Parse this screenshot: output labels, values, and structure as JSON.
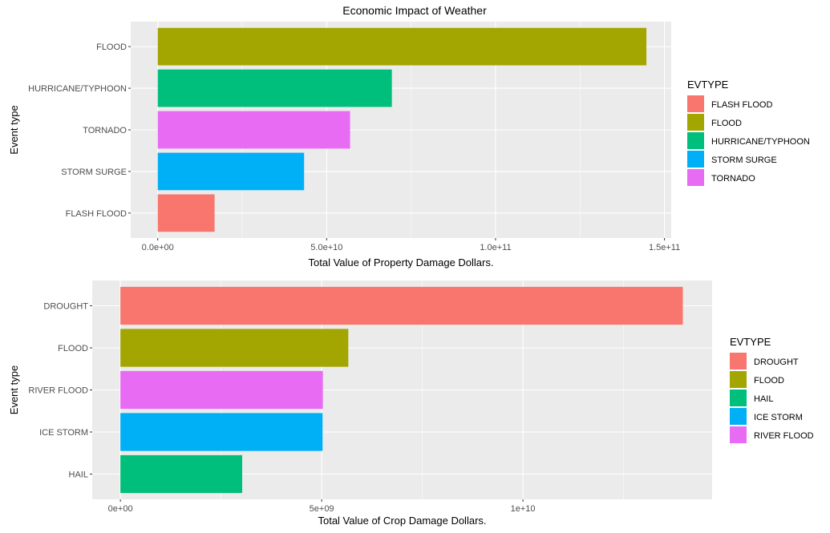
{
  "title": "Economic Impact of Weather",
  "chart_data": [
    {
      "type": "bar",
      "orientation": "horizontal",
      "categories": [
        "FLOOD",
        "HURRICANE/TYPHOON",
        "TORNADO",
        "STORM SURGE",
        "FLASH FLOOD"
      ],
      "values": [
        144657709807,
        69305840000,
        56937160779,
        43323536000,
        16822673978
      ],
      "colors": [
        "#A3A500",
        "#00BF7D",
        "#E76BF3",
        "#00B0F6",
        "#F8766D"
      ],
      "xlabel": "Total Value of Property Damage Dollars.",
      "ylabel": "Event type",
      "xlim": [
        -8000000000,
        152000000000
      ],
      "ticks": [
        0,
        50000000000,
        100000000000,
        150000000000
      ],
      "tick_labels": [
        "0.0e+00",
        "5.0e+10",
        "1.0e+11",
        "1.5e+11"
      ],
      "grid": true,
      "legend": {
        "title": "EVTYPE",
        "position": "right",
        "entries": [
          "FLASH FLOOD",
          "FLOOD",
          "HURRICANE/TYPHOON",
          "STORM SURGE",
          "TORNADO"
        ],
        "colors": [
          "#F8766D",
          "#A3A500",
          "#00BF7D",
          "#00B0F6",
          "#E76BF3"
        ]
      }
    },
    {
      "type": "bar",
      "orientation": "horizontal",
      "categories": [
        "DROUGHT",
        "FLOOD",
        "RIVER FLOOD",
        "ICE STORM",
        "HAIL"
      ],
      "values": [
        13972566000,
        5661968450,
        5029459000,
        5022113500,
        3025954473
      ],
      "colors": [
        "#F8766D",
        "#A3A500",
        "#E76BF3",
        "#00B0F6",
        "#00BF7D"
      ],
      "xlabel": "Total Value of Crop Damage Dollars.",
      "ylabel": "Event type",
      "xlim": [
        -700000000,
        14700000000
      ],
      "ticks": [
        0,
        5000000000,
        10000000000
      ],
      "tick_labels": [
        "0e+00",
        "5e+09",
        "1e+10"
      ],
      "grid": true,
      "legend": {
        "title": "EVTYPE",
        "position": "right",
        "entries": [
          "DROUGHT",
          "FLOOD",
          "HAIL",
          "ICE STORM",
          "RIVER FLOOD"
        ],
        "colors": [
          "#F8766D",
          "#A3A500",
          "#00BF7D",
          "#00B0F6",
          "#E76BF3"
        ]
      }
    }
  ]
}
